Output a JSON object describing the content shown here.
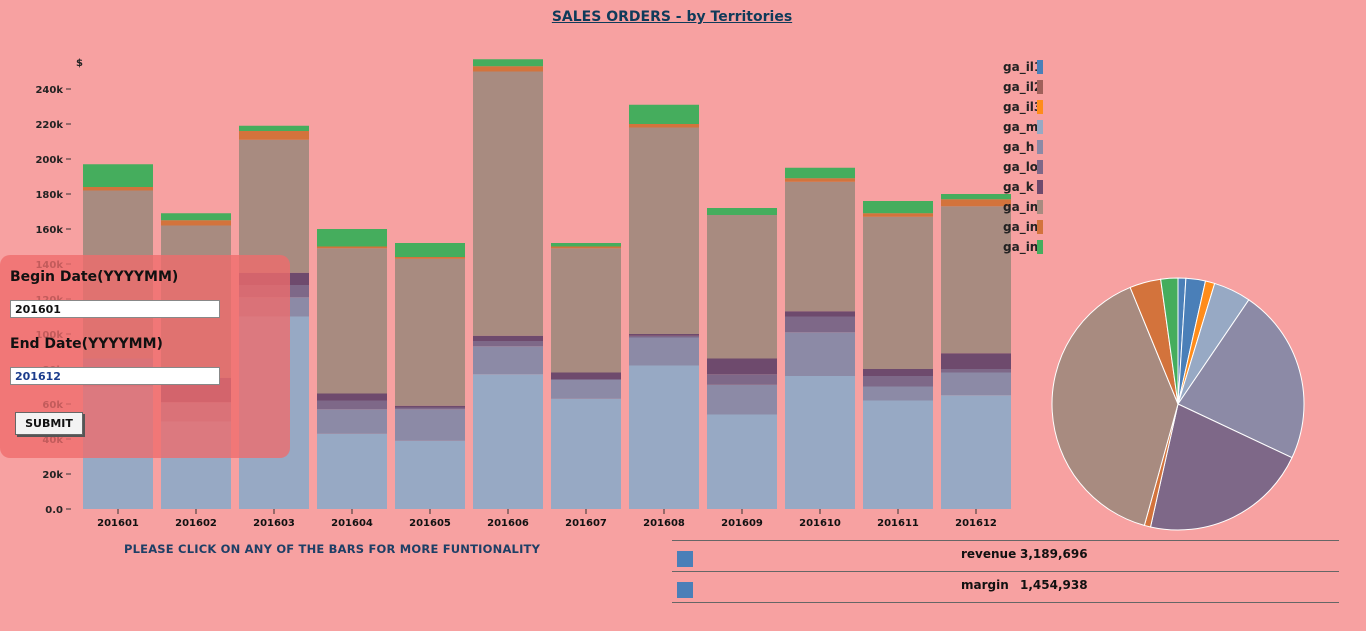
{
  "page": {
    "title": "SALES ORDERS - by Territories",
    "instruction": "PLEASE CLICK ON ANY OF THE BARS FOR MORE FUNTIONALITY"
  },
  "date_panel": {
    "begin_label": "Begin Date(YYYYMM)",
    "begin_value": "201601",
    "end_label": "End Date(YYYYMM)",
    "end_value": "201612",
    "submit_label": "SUBMIT"
  },
  "totals": [
    {
      "label": "revenue",
      "value": "3,189,696",
      "color": "#4a7fb8"
    },
    {
      "label": "margin",
      "value": "1,454,938",
      "color": "#4a7fb8"
    }
  ],
  "chart_data": [
    {
      "type": "bar",
      "stacked": true,
      "ylabel": "$",
      "ylim": [
        0,
        250000
      ],
      "yticks": [
        0,
        20000,
        40000,
        60000,
        80000,
        100000,
        120000,
        140000,
        160000,
        180000,
        200000,
        220000,
        240000
      ],
      "ytick_labels": [
        "0.0",
        "20k",
        "40k",
        "60k",
        "80k",
        "100k",
        "120k",
        "140k",
        "160k",
        "180k",
        "200k",
        "220k",
        "240k"
      ],
      "categories": [
        "201601",
        "201602",
        "201603",
        "201604",
        "201605",
        "201606",
        "201607",
        "201608",
        "201609",
        "201610",
        "201611",
        "201612"
      ],
      "legend_position": "top-right",
      "series": [
        {
          "name": "ga_il1",
          "color": "#4a7fb8",
          "values": [
            0,
            0,
            0,
            0,
            0,
            0,
            0,
            0,
            0,
            0,
            0,
            0
          ]
        },
        {
          "name": "ga_il2",
          "color": "#a0605a",
          "values": [
            0,
            0,
            0,
            0,
            0,
            0,
            0,
            0,
            0,
            0,
            0,
            0
          ]
        },
        {
          "name": "ga_il3",
          "color": "#ff8c1a",
          "values": [
            0,
            0,
            0,
            0,
            0,
            0,
            0,
            0,
            0,
            0,
            0,
            0
          ]
        },
        {
          "name": "ga_mi",
          "color": "#97a9c4",
          "values": [
            70000,
            50000,
            110000,
            43000,
            39000,
            77000,
            63000,
            82000,
            54000,
            76000,
            62000,
            65000
          ]
        },
        {
          "name": "ga_h",
          "color": "#8c8aa6",
          "values": [
            16000,
            11000,
            11000,
            14000,
            18000,
            16000,
            11000,
            16000,
            17000,
            25000,
            8000,
            13000
          ]
        },
        {
          "name": "ga_low",
          "color": "#7e6888",
          "values": [
            0,
            0,
            7000,
            5000,
            1000,
            3000,
            0,
            1000,
            6000,
            9000,
            6000,
            2000
          ]
        },
        {
          "name": "ga_k",
          "color": "#6e4a6d",
          "values": [
            0,
            14000,
            7000,
            4000,
            1000,
            3000,
            4000,
            1000,
            9000,
            3000,
            4000,
            9000
          ]
        },
        {
          "name": "ga_ind",
          "color": "#a88b80",
          "values": [
            96000,
            87000,
            76000,
            83000,
            84000,
            151000,
            71000,
            118000,
            82000,
            74000,
            87000,
            84000
          ]
        },
        {
          "name": "ga_ind",
          "color": "#d3733c",
          "values": [
            2000,
            3000,
            5000,
            1000,
            1000,
            3000,
            1000,
            2000,
            0,
            2000,
            2000,
            4000
          ]
        },
        {
          "name": "ga_ind",
          "color": "#45ad5d",
          "values": [
            13000,
            4000,
            3000,
            10000,
            8000,
            4000,
            2000,
            11000,
            4000,
            6000,
            7000,
            3000
          ]
        }
      ]
    },
    {
      "type": "pie",
      "slices": [
        {
          "name": "ga_il1",
          "color": "#4a7fb8",
          "value": 1.0
        },
        {
          "name": "ga_il1",
          "color": "#4a7fb8",
          "value": 2.5
        },
        {
          "name": "ga_il3",
          "color": "#ff8c1a",
          "value": 1.2
        },
        {
          "name": "ga_mi",
          "color": "#97a9c4",
          "value": 4.8
        },
        {
          "name": "ga_h",
          "color": "#8c8aa6",
          "value": 22.5
        },
        {
          "name": "ga_low",
          "color": "#7e6888",
          "value": 21.5
        },
        {
          "name": "ga_ind",
          "color": "#d3733c",
          "value": 0.8
        },
        {
          "name": "ga_ind",
          "color": "#a88b80",
          "value": 39.5
        },
        {
          "name": "ga_ind",
          "color": "#d3733c",
          "value": 4.0
        },
        {
          "name": "ga_ind",
          "color": "#45ad5d",
          "value": 2.2
        }
      ]
    }
  ]
}
